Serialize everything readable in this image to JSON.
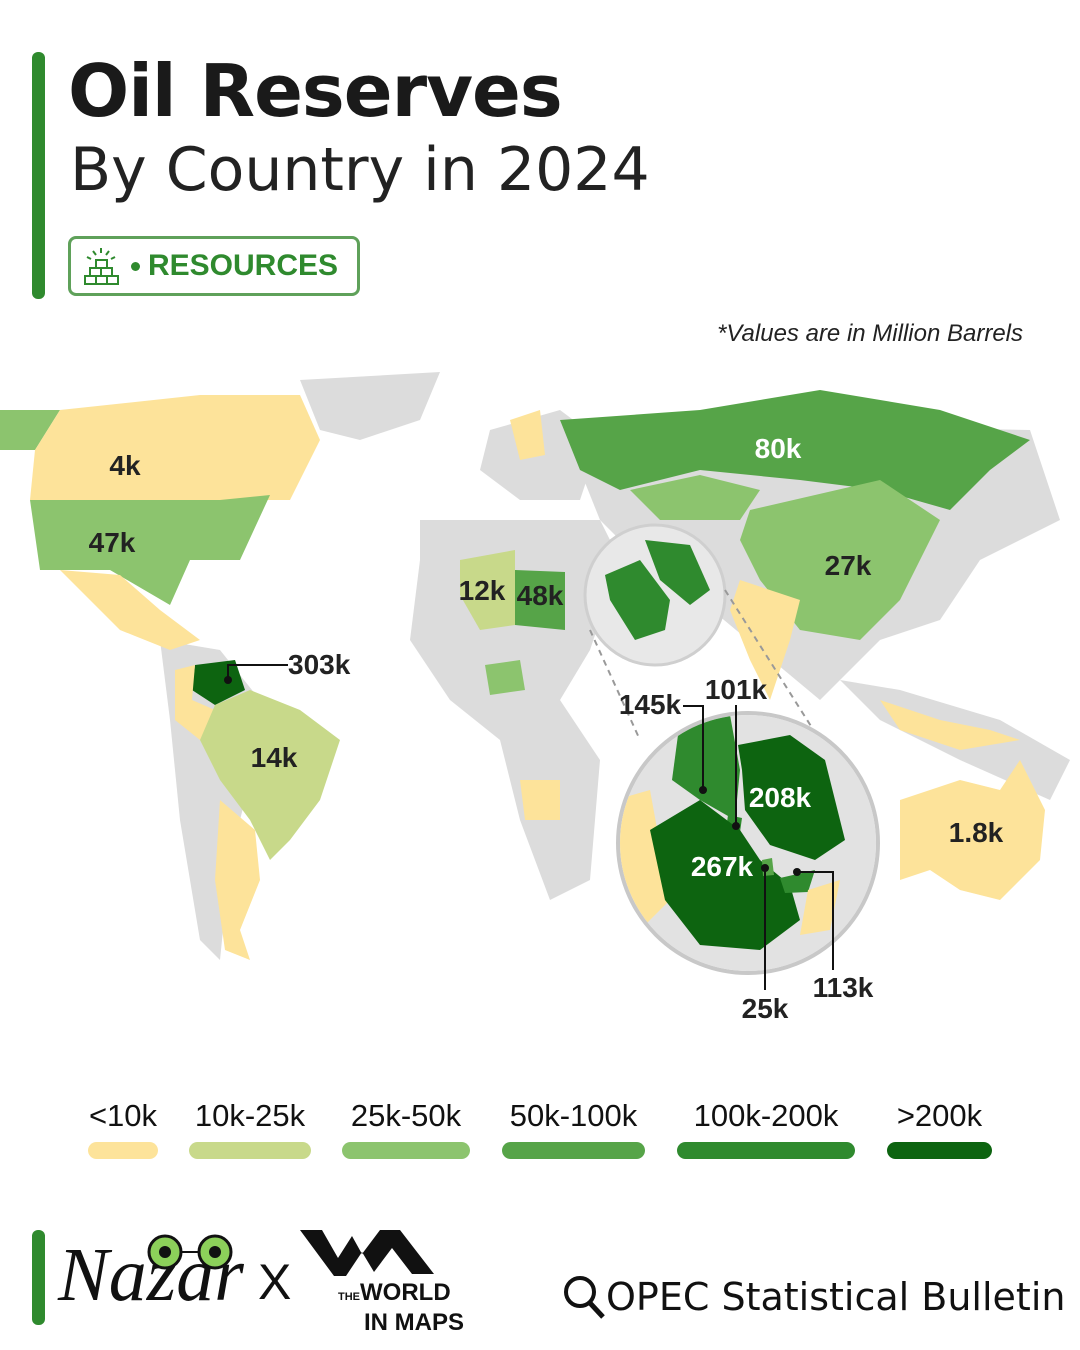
{
  "header": {
    "title": "Oil Reserves",
    "subtitle": "By Country in 2024",
    "badge_label": "RESOURCES",
    "badge_icon": "gold-bars-icon"
  },
  "note": "*Values are in Million Barrels",
  "colors": {
    "none": "#dcdcdc",
    "lt10k": "#fde39a",
    "10k-25k": "#c8d98a",
    "25k-50k": "#8cc46e",
    "50k-100k": "#56a448",
    "100k-200k": "#2f8a2e",
    "gt200k": "#0d6410",
    "accent": "#2f8a2e"
  },
  "map_labels": {
    "canada": "4k",
    "usa": "47k",
    "algeria": "12k",
    "libya": "48k",
    "russia": "80k",
    "china": "27k",
    "venezuela": "303k",
    "brazil": "14k",
    "australia": "1.8k",
    "iraq": "145k",
    "kuwait": "101k",
    "iran": "208k",
    "saudi_arabia": "267k",
    "qatar": "25k",
    "uae": "113k"
  },
  "legend": [
    {
      "label": "<10k",
      "color": "#fde39a"
    },
    {
      "label": "10k-25k",
      "color": "#c8d98a"
    },
    {
      "label": "25k-50k",
      "color": "#8cc46e"
    },
    {
      "label": "50k-100k",
      "color": "#56a448"
    },
    {
      "label": "100k-200k",
      "color": "#2f8a2e"
    },
    {
      "label": ">200k",
      "color": "#0d6410"
    }
  ],
  "footer": {
    "brand1": "Nazar",
    "separator": "X",
    "brand2_small": "THE",
    "brand2_line1": "WORLD",
    "brand2_line2": "IN MAPS",
    "source": "OPEC Statistical Bulletin",
    "source_icon": "search-icon"
  }
}
